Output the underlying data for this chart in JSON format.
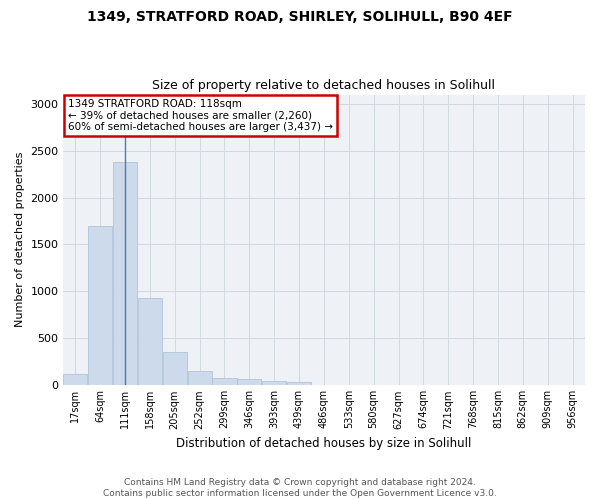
{
  "title_line1": "1349, STRATFORD ROAD, SHIRLEY, SOLIHULL, B90 4EF",
  "title_line2": "Size of property relative to detached houses in Solihull",
  "xlabel": "Distribution of detached houses by size in Solihull",
  "ylabel": "Number of detached properties",
  "bar_color": "#ccdaeb",
  "bar_edge_color": "#a8bdd4",
  "grid_color": "#d0d8e0",
  "bg_color": "#eef2f7",
  "annotation_text": "1349 STRATFORD ROAD: 118sqm\n← 39% of detached houses are smaller (2,260)\n60% of semi-detached houses are larger (3,437) →",
  "annotation_box_color": "#cc0000",
  "vline_bin": 2,
  "categories": [
    "17sqm",
    "64sqm",
    "111sqm",
    "158sqm",
    "205sqm",
    "252sqm",
    "299sqm",
    "346sqm",
    "393sqm",
    "439sqm",
    "486sqm",
    "533sqm",
    "580sqm",
    "627sqm",
    "674sqm",
    "721sqm",
    "768sqm",
    "815sqm",
    "862sqm",
    "909sqm",
    "956sqm"
  ],
  "values": [
    120,
    1700,
    2380,
    930,
    350,
    150,
    80,
    60,
    40,
    30,
    5,
    5,
    5,
    2,
    2,
    1,
    1,
    1,
    0,
    0,
    0
  ],
  "ylim": [
    0,
    3100
  ],
  "yticks": [
    0,
    500,
    1000,
    1500,
    2000,
    2500,
    3000
  ],
  "footer_line1": "Contains HM Land Registry data © Crown copyright and database right 2024.",
  "footer_line2": "Contains public sector information licensed under the Open Government Licence v3.0.",
  "figsize": [
    6.0,
    5.0
  ],
  "dpi": 100
}
